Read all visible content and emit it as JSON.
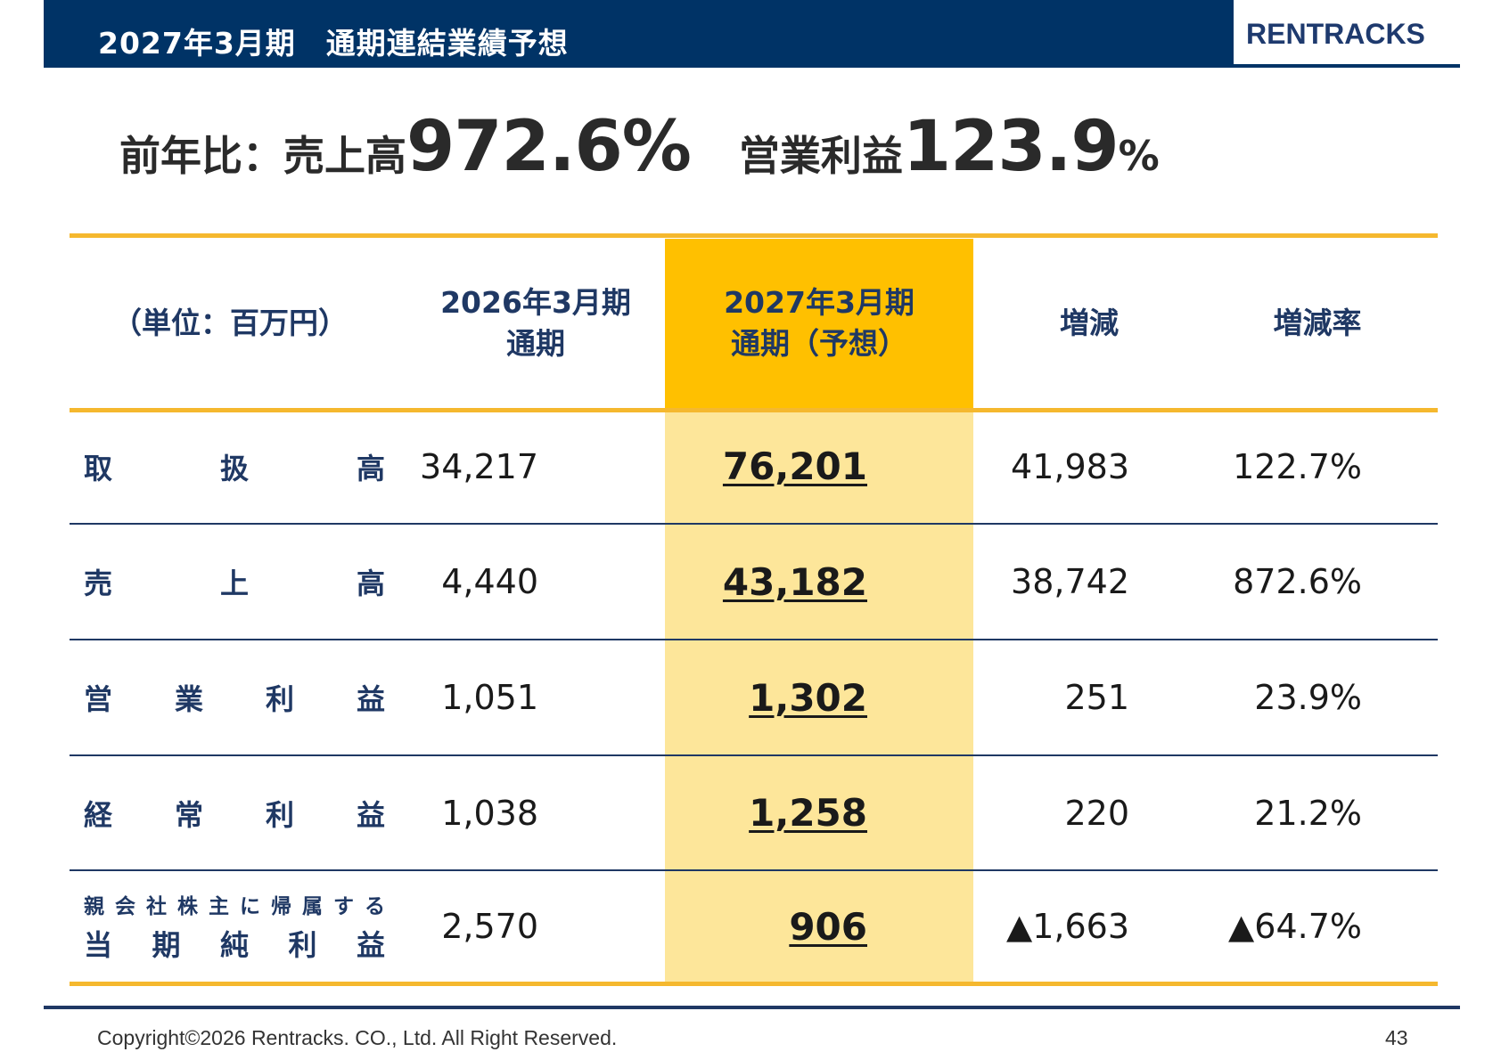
{
  "header": {
    "title": "2027年3月期　通期連結業績予想",
    "logo_text": "RENTRACKS",
    "bar_color": "#003366"
  },
  "headline": {
    "label_prefix": "前年比：売上高",
    "sales_growth": "972.6%",
    "op_label": "営業利益",
    "op_growth_number": "123.9",
    "op_growth_unit": "%"
  },
  "table": {
    "unit_label": "（単位：百万円）",
    "columns": [
      {
        "line1": "2026年3月期",
        "line2": "通期"
      },
      {
        "line1": "2027年3月期",
        "line2": "通期（予想）"
      },
      {
        "line1": "増減",
        "line2": ""
      },
      {
        "line1": "増減率",
        "line2": ""
      }
    ],
    "rows": [
      {
        "label_chars": [
          "取",
          "扱",
          "高"
        ],
        "label_top_chars": [],
        "prev": "34,217",
        "forecast": "76,201",
        "change": "41,983",
        "rate": "122.7%"
      },
      {
        "label_chars": [
          "売",
          "上",
          "高"
        ],
        "label_top_chars": [],
        "prev": "4,440",
        "forecast": "43,182",
        "change": "38,742",
        "rate": "872.6%"
      },
      {
        "label_chars": [
          "営",
          "業",
          "利",
          "益"
        ],
        "label_top_chars": [],
        "prev": "1,051",
        "forecast": "1,302",
        "change": "251",
        "rate": "23.9%"
      },
      {
        "label_chars": [
          "経",
          "常",
          "利",
          "益"
        ],
        "label_top_chars": [],
        "prev": "1,038",
        "forecast": "1,258",
        "change": "220",
        "rate": "21.2%"
      },
      {
        "label_chars": [
          "当",
          "期",
          "純",
          "利",
          "益"
        ],
        "label_top_chars": [
          "親",
          "会",
          "社",
          "株",
          "主",
          "に",
          "帰",
          "属",
          "す",
          "る"
        ],
        "prev": "2,570",
        "forecast": "906",
        "change": "▲1,663",
        "rate": "▲64.7%"
      }
    ],
    "highlight_head_color": "#ffc000",
    "highlight_body_color": "#fde69a",
    "rule_gold_color": "#f5b82e",
    "rule_navy_color": "#1f3864"
  },
  "footer": {
    "copyright": "Copyright©2026 Rentracks. CO., Ltd. All Right Reserved.",
    "page_number": "43"
  }
}
